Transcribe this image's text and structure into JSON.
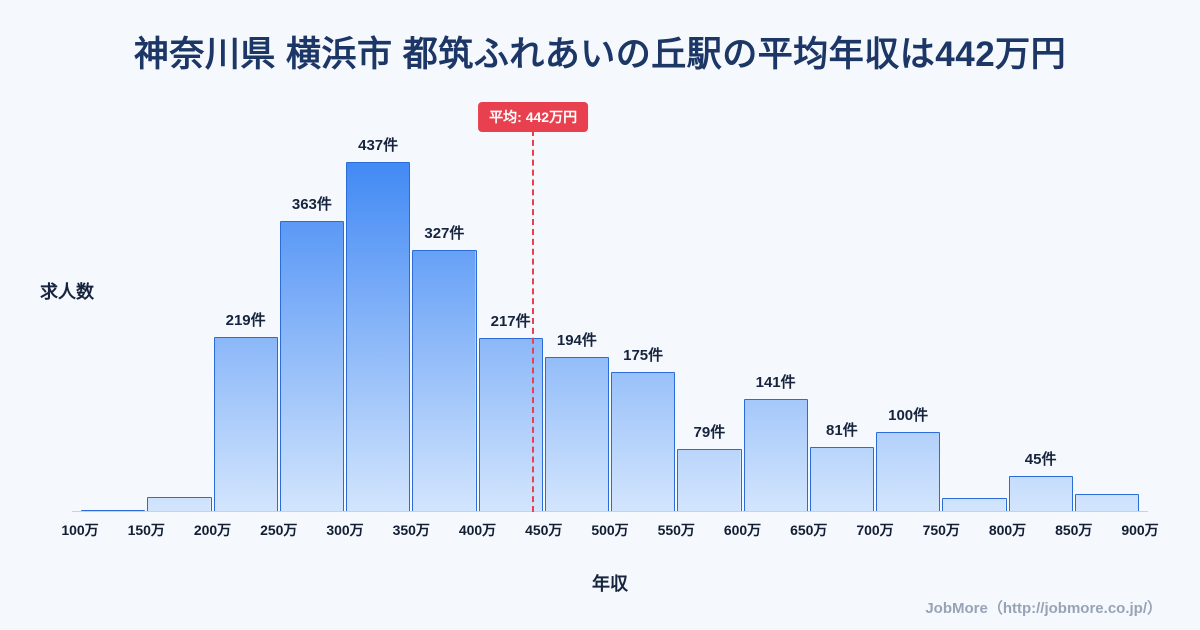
{
  "page": {
    "title": "神奈川県 横浜市 都筑ふれあいの丘駅の平均年収は442万円",
    "footer": "JobMore（http://jobmore.co.jp/）"
  },
  "chart_data": {
    "type": "bar",
    "title": "神奈川県 横浜市 都筑ふれあいの丘駅の平均年収は442万円",
    "xlabel": "年収",
    "ylabel": "求人数",
    "x_min": 100,
    "x_max": 900,
    "ylim": [
      0,
      460
    ],
    "grid": false,
    "legend": "none",
    "x_ticks": [
      "100万",
      "150万",
      "200万",
      "250万",
      "300万",
      "350万",
      "400万",
      "450万",
      "500万",
      "550万",
      "600万",
      "650万",
      "700万",
      "750万",
      "800万",
      "850万",
      "900万"
    ],
    "bins": [
      {
        "range": "100万-150万",
        "value": 3,
        "label": null
      },
      {
        "range": "150万-200万",
        "value": 19,
        "label": null
      },
      {
        "range": "200万-250万",
        "value": 219,
        "label": "219件"
      },
      {
        "range": "250万-300万",
        "value": 363,
        "label": "363件"
      },
      {
        "range": "300万-350万",
        "value": 437,
        "label": "437件"
      },
      {
        "range": "350万-400万",
        "value": 327,
        "label": "327件"
      },
      {
        "range": "400万-450万",
        "value": 217,
        "label": "217件"
      },
      {
        "range": "450万-500万",
        "value": 194,
        "label": "194件"
      },
      {
        "range": "500万-550万",
        "value": 175,
        "label": "175件"
      },
      {
        "range": "550万-600万",
        "value": 79,
        "label": "79件"
      },
      {
        "range": "600万-650万",
        "value": 141,
        "label": "141件"
      },
      {
        "range": "650万-700万",
        "value": 81,
        "label": "81件"
      },
      {
        "range": "700万-750万",
        "value": 100,
        "label": "100件"
      },
      {
        "range": "750万-800万",
        "value": 18,
        "label": null
      },
      {
        "range": "800万-850万",
        "value": 45,
        "label": "45件"
      },
      {
        "range": "850万-900万",
        "value": 22,
        "label": null
      }
    ],
    "average": {
      "value": 442,
      "label": "平均: 442万円",
      "line_color": "#e8404f"
    },
    "colors": {
      "bar_fill_top": "#4189f4",
      "bar_fill_bottom": "#d3e5fd",
      "bar_border": "#2c6cd9",
      "title_text": "#1c3666",
      "background": "#f5f8fd"
    }
  }
}
